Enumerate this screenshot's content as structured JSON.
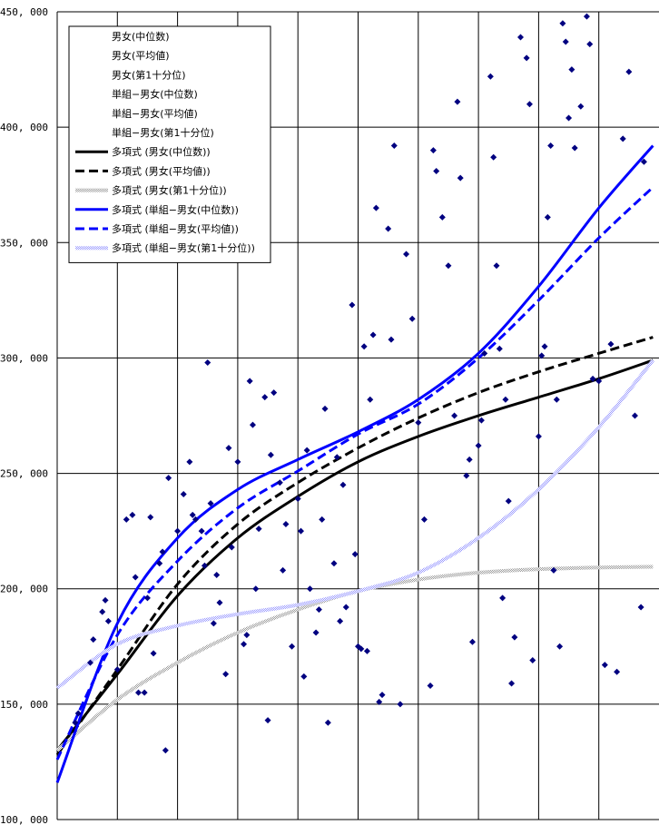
{
  "chart_data": {
    "type": "scatter",
    "title": "",
    "xlabel": "",
    "ylabel": "",
    "ylim": [
      100000,
      450000
    ],
    "xlim": [
      0,
      10
    ],
    "x_gridlines": [
      1,
      2,
      3,
      4,
      5,
      6,
      7,
      8,
      9
    ],
    "y_ticks": [
      100000,
      150000,
      200000,
      250000,
      300000,
      350000,
      400000,
      450000
    ],
    "y_tick_labels": [
      "100, 000",
      "150, 000",
      "200, 000",
      "250, 000",
      "300, 000",
      "350, 000",
      "400, 000",
      "450, 000"
    ],
    "grid": true,
    "legend_position": "top-left",
    "marker_color": "#000080",
    "scatter_series": [
      {
        "name": "男女(中位数)"
      },
      {
        "name": "男女(平均値)"
      },
      {
        "name": "男女(第1十分位)"
      },
      {
        "name": "単組−男女(中位数)"
      },
      {
        "name": "単組−男女(平均値)"
      },
      {
        "name": "単組−男女(第1十分位)"
      }
    ],
    "points": [
      [
        0.3,
        142000
      ],
      [
        0.35,
        146000
      ],
      [
        0.55,
        168000
      ],
      [
        0.6,
        178000
      ],
      [
        0.75,
        190000
      ],
      [
        0.8,
        195000
      ],
      [
        0.85,
        186000
      ],
      [
        1.0,
        165000
      ],
      [
        1.15,
        230000
      ],
      [
        1.25,
        232000
      ],
      [
        1.3,
        205000
      ],
      [
        1.35,
        155000
      ],
      [
        1.45,
        155000
      ],
      [
        1.5,
        196000
      ],
      [
        1.55,
        231000
      ],
      [
        1.6,
        172000
      ],
      [
        1.7,
        211000
      ],
      [
        1.75,
        216000
      ],
      [
        1.8,
        130000
      ],
      [
        1.85,
        248000
      ],
      [
        2.0,
        225000
      ],
      [
        2.1,
        241000
      ],
      [
        2.2,
        255000
      ],
      [
        2.25,
        232000
      ],
      [
        2.3,
        230000
      ],
      [
        2.4,
        225000
      ],
      [
        2.45,
        210000
      ],
      [
        2.5,
        298000
      ],
      [
        2.55,
        237000
      ],
      [
        2.6,
        185000
      ],
      [
        2.65,
        206000
      ],
      [
        2.7,
        194000
      ],
      [
        2.8,
        163000
      ],
      [
        2.85,
        261000
      ],
      [
        2.9,
        218000
      ],
      [
        3.0,
        255000
      ],
      [
        3.1,
        176000
      ],
      [
        3.15,
        180000
      ],
      [
        3.2,
        290000
      ],
      [
        3.25,
        271000
      ],
      [
        3.3,
        200000
      ],
      [
        3.35,
        226000
      ],
      [
        3.45,
        283000
      ],
      [
        3.5,
        143000
      ],
      [
        3.55,
        258000
      ],
      [
        3.6,
        285000
      ],
      [
        3.7,
        246000
      ],
      [
        3.75,
        208000
      ],
      [
        3.8,
        228000
      ],
      [
        3.9,
        175000
      ],
      [
        4.0,
        239000
      ],
      [
        4.05,
        225000
      ],
      [
        4.1,
        162000
      ],
      [
        4.15,
        260000
      ],
      [
        4.2,
        200000
      ],
      [
        4.3,
        181000
      ],
      [
        4.35,
        191000
      ],
      [
        4.4,
        230000
      ],
      [
        4.45,
        278000
      ],
      [
        4.5,
        142000
      ],
      [
        4.6,
        211000
      ],
      [
        4.65,
        257000
      ],
      [
        4.7,
        186000
      ],
      [
        4.75,
        245000
      ],
      [
        4.8,
        192000
      ],
      [
        4.9,
        323000
      ],
      [
        4.95,
        215000
      ],
      [
        5.0,
        175000
      ],
      [
        5.05,
        174000
      ],
      [
        5.1,
        305000
      ],
      [
        5.15,
        173000
      ],
      [
        5.2,
        282000
      ],
      [
        5.25,
        310000
      ],
      [
        5.3,
        365000
      ],
      [
        5.35,
        151000
      ],
      [
        5.4,
        154000
      ],
      [
        5.5,
        356000
      ],
      [
        5.55,
        308000
      ],
      [
        5.6,
        392000
      ],
      [
        5.7,
        150000
      ],
      [
        5.8,
        345000
      ],
      [
        5.9,
        317000
      ],
      [
        6.0,
        272000
      ],
      [
        6.1,
        230000
      ],
      [
        6.2,
        158000
      ],
      [
        6.25,
        390000
      ],
      [
        6.3,
        381000
      ],
      [
        6.4,
        361000
      ],
      [
        6.5,
        340000
      ],
      [
        6.6,
        275000
      ],
      [
        6.65,
        411000
      ],
      [
        6.7,
        378000
      ],
      [
        6.8,
        249000
      ],
      [
        6.85,
        256000
      ],
      [
        6.9,
        177000
      ],
      [
        7.0,
        262000
      ],
      [
        7.05,
        273000
      ],
      [
        7.1,
        302000
      ],
      [
        7.2,
        422000
      ],
      [
        7.25,
        387000
      ],
      [
        7.3,
        340000
      ],
      [
        7.35,
        304000
      ],
      [
        7.4,
        196000
      ],
      [
        7.45,
        282000
      ],
      [
        7.5,
        238000
      ],
      [
        7.55,
        159000
      ],
      [
        7.6,
        179000
      ],
      [
        7.7,
        439000
      ],
      [
        7.8,
        430000
      ],
      [
        7.85,
        410000
      ],
      [
        7.9,
        169000
      ],
      [
        8.0,
        266000
      ],
      [
        8.05,
        301000
      ],
      [
        8.1,
        305000
      ],
      [
        8.15,
        361000
      ],
      [
        8.2,
        392000
      ],
      [
        8.25,
        208000
      ],
      [
        8.3,
        282000
      ],
      [
        8.35,
        175000
      ],
      [
        8.4,
        445000
      ],
      [
        8.45,
        437000
      ],
      [
        8.5,
        404000
      ],
      [
        8.55,
        425000
      ],
      [
        8.6,
        391000
      ],
      [
        8.7,
        409000
      ],
      [
        8.8,
        448000
      ],
      [
        8.85,
        436000
      ],
      [
        8.9,
        291000
      ],
      [
        9.0,
        290000
      ],
      [
        9.1,
        167000
      ],
      [
        9.2,
        306000
      ],
      [
        9.3,
        164000
      ],
      [
        9.4,
        395000
      ],
      [
        9.5,
        424000
      ],
      [
        9.6,
        275000
      ],
      [
        9.7,
        192000
      ],
      [
        9.75,
        385000
      ]
    ],
    "trend_series": [
      {
        "name": "多項式 (男女(中位数))",
        "color": "#000000",
        "dash": "solid",
        "width": 3,
        "x": [
          0,
          1,
          2,
          3,
          4,
          5,
          6,
          7,
          8,
          9,
          9.9
        ],
        "y": [
          130000,
          163000,
          197000,
          222000,
          240000,
          255000,
          266000,
          275000,
          283000,
          291000,
          299000
        ]
      },
      {
        "name": "多項式 (男女(平均値))",
        "color": "#000000",
        "dash": "dashed",
        "width": 3,
        "x": [
          0,
          1,
          2,
          3,
          4,
          5,
          6,
          7,
          8,
          9,
          9.9
        ],
        "y": [
          128000,
          165000,
          202000,
          228000,
          246000,
          261000,
          274000,
          285000,
          294000,
          302000,
          309000
        ]
      },
      {
        "name": "多項式 (男女(第1十分位))",
        "color": "#9a9a9a",
        "dash": "textured",
        "width": 4,
        "x": [
          0,
          1,
          2,
          3,
          4,
          5,
          6,
          7,
          8,
          9,
          9.9
        ],
        "y": [
          130000,
          152000,
          168000,
          181000,
          191000,
          199000,
          204000,
          207000,
          208500,
          209200,
          209500
        ]
      },
      {
        "name": "多項式 (単組−男女(中位数))",
        "color": "#0000ff",
        "dash": "solid",
        "width": 3,
        "x": [
          0,
          1,
          2,
          3,
          4,
          5,
          6,
          7,
          8,
          9,
          9.9
        ],
        "y": [
          116000,
          185000,
          222000,
          243000,
          256000,
          268000,
          282000,
          302000,
          331000,
          365000,
          392000
        ]
      },
      {
        "name": "多項式 (単組−男女(平均値))",
        "color": "#0000ff",
        "dash": "dashed",
        "width": 3,
        "x": [
          0,
          1,
          2,
          3,
          4,
          5,
          6,
          7,
          8,
          9,
          9.9
        ],
        "y": [
          126000,
          180000,
          212000,
          235000,
          251000,
          267000,
          280000,
          300000,
          325000,
          352000,
          374000
        ]
      },
      {
        "name": "多項式 (単組−男女(第1十分位))",
        "color": "#9a9aff",
        "dash": "textured",
        "width": 4,
        "x": [
          0,
          1,
          2,
          3,
          4,
          5,
          6,
          7,
          8,
          9,
          9.9
        ],
        "y": [
          157000,
          176000,
          184000,
          189000,
          193000,
          199000,
          207000,
          222000,
          243000,
          270000,
          299000
        ]
      }
    ]
  }
}
